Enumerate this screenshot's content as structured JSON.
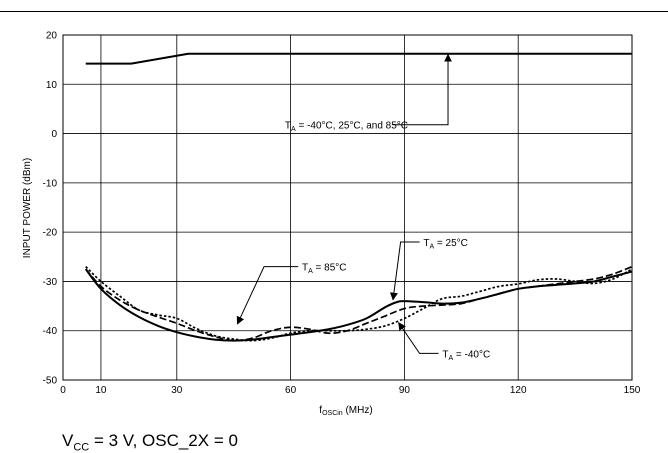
{
  "chart_data": {
    "type": "line",
    "xlabel": {
      "main": "f",
      "sub": "OSCin",
      "rest": " (MHz)"
    },
    "ylabel": "INPUT POWER (dBm)",
    "xlim": [
      0,
      150
    ],
    "ylim": [
      -50,
      20
    ],
    "xticks": [
      0,
      10,
      30,
      60,
      90,
      120,
      150
    ],
    "yticks": [
      -50,
      -40,
      -30,
      -20,
      -10,
      0,
      10,
      20
    ],
    "grid": true,
    "series": [
      {
        "id": "upper",
        "style": "solid",
        "x": [
          6,
          18,
          33,
          150
        ],
        "y": [
          14.2,
          14.2,
          16.2,
          16.2
        ]
      },
      {
        "id": "t85",
        "style": "dash",
        "x": [
          6,
          10,
          15,
          20,
          25,
          30,
          35,
          40,
          45,
          50,
          55,
          60,
          65,
          70,
          75,
          80,
          85,
          90,
          95,
          100,
          105,
          110,
          115,
          120,
          125,
          130,
          135,
          140,
          145,
          150
        ],
        "y": [
          -27.5,
          -31,
          -33.8,
          -35.8,
          -37.2,
          -38.5,
          -40,
          -41.2,
          -42,
          -41.5,
          -40,
          -39.3,
          -39.7,
          -40.5,
          -40,
          -38.5,
          -37,
          -35.5,
          -35,
          -34.8,
          -34.5,
          -33.5,
          -32.5,
          -31.5,
          -31,
          -30.5,
          -30,
          -29.5,
          -28.5,
          -27
        ]
      },
      {
        "id": "t25",
        "style": "solid",
        "x": [
          6,
          10,
          15,
          20,
          25,
          30,
          35,
          40,
          45,
          50,
          55,
          60,
          65,
          70,
          75,
          80,
          85,
          88,
          90,
          95,
          100,
          105,
          110,
          115,
          120,
          125,
          130,
          135,
          140,
          145,
          150
        ],
        "y": [
          -27.5,
          -31.5,
          -34.8,
          -37.2,
          -39,
          -40.3,
          -41.2,
          -41.8,
          -42,
          -41.8,
          -41.3,
          -40.8,
          -40.3,
          -39.7,
          -38.8,
          -37.5,
          -35.2,
          -34.2,
          -34,
          -34.2,
          -34.5,
          -34.3,
          -33.5,
          -32.5,
          -31.5,
          -31,
          -30.7,
          -30.4,
          -30,
          -29,
          -28
        ]
      },
      {
        "id": "tm40",
        "style": "dot",
        "x": [
          6,
          10,
          15,
          20,
          25,
          30,
          35,
          40,
          45,
          50,
          55,
          60,
          65,
          70,
          75,
          80,
          85,
          90,
          95,
          100,
          105,
          110,
          115,
          120,
          125,
          130,
          135,
          140,
          145,
          150
        ],
        "y": [
          -27,
          -30,
          -33,
          -35.8,
          -36.8,
          -37.5,
          -39.5,
          -41,
          -41.7,
          -42,
          -41.5,
          -40.5,
          -40,
          -40,
          -40,
          -39.7,
          -39,
          -37.5,
          -35.5,
          -33.5,
          -33,
          -32,
          -31,
          -30.5,
          -29.7,
          -29.5,
          -30,
          -30.4,
          -29.5,
          -27.5
        ]
      }
    ],
    "annotations": [
      {
        "id": "ann-upper",
        "prefix": "T",
        "sub": "A",
        "text": " = -40°C, 25°C, and 85°C"
      },
      {
        "id": "ann-85",
        "prefix": "T",
        "sub": "A",
        "text": " = 85°C"
      },
      {
        "id": "ann-25",
        "prefix": "T",
        "sub": "A",
        "text": " = 25°C"
      },
      {
        "id": "ann-m40",
        "prefix": "T",
        "sub": "A",
        "text": " = -40°C"
      }
    ]
  },
  "footer": {
    "v": "V",
    "sub": "CC",
    "rest": " = 3 V, OSC_2X = 0"
  }
}
